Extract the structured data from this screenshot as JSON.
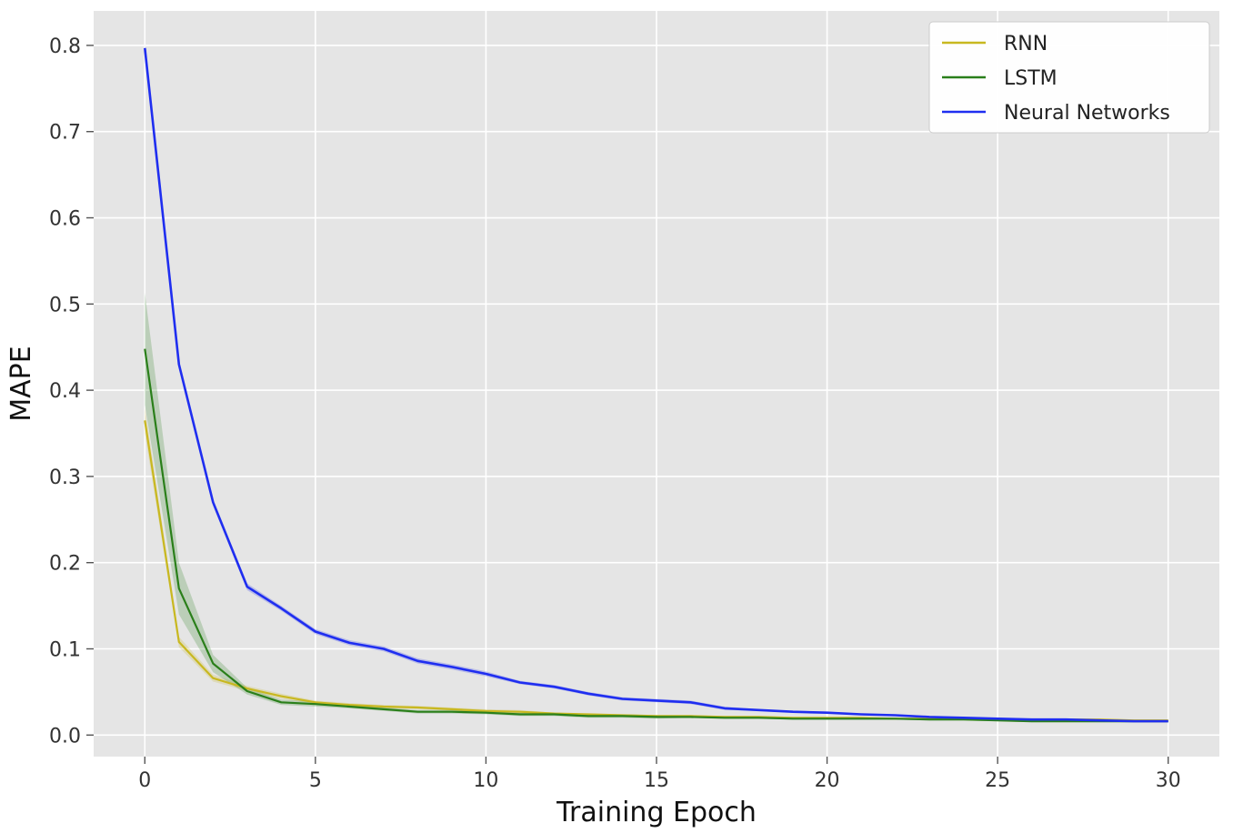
{
  "chart_data": {
    "type": "line",
    "xlabel": "Training Epoch",
    "ylabel": "MAPE",
    "xlim": [
      -1.5,
      31.5
    ],
    "ylim": [
      -0.025,
      0.84
    ],
    "xticks": [
      0,
      5,
      10,
      15,
      20,
      25,
      30
    ],
    "yticks": [
      0.0,
      0.1,
      0.2,
      0.3,
      0.4,
      0.5,
      0.6,
      0.7,
      0.8
    ],
    "ytick_labels": [
      "0.0",
      "0.1",
      "0.2",
      "0.3",
      "0.4",
      "0.5",
      "0.6",
      "0.7",
      "0.8"
    ],
    "grid": true,
    "legend_position": "top-right",
    "background": "#e5e5e5",
    "x": [
      0,
      1,
      2,
      3,
      4,
      5,
      6,
      7,
      8,
      9,
      10,
      11,
      12,
      13,
      14,
      15,
      16,
      17,
      18,
      19,
      20,
      21,
      22,
      23,
      24,
      25,
      26,
      27,
      28,
      29,
      30
    ],
    "series": [
      {
        "name": "RNN",
        "color": "#c8b820",
        "values": [
          0.365,
          0.108,
          0.066,
          0.054,
          0.045,
          0.038,
          0.035,
          0.033,
          0.032,
          0.03,
          0.028,
          0.027,
          0.025,
          0.024,
          0.023,
          0.022,
          0.022,
          0.021,
          0.021,
          0.02,
          0.02,
          0.02,
          0.019,
          0.019,
          0.019,
          0.018,
          0.018,
          0.018,
          0.018,
          0.017,
          0.017
        ],
        "band": [
          0.015,
          0.006,
          0.004,
          0.003,
          0.003,
          0.002,
          0.002,
          0.002,
          0.002,
          0.002,
          0.002,
          0.002,
          0.001,
          0.001,
          0.001,
          0.001,
          0.001,
          0.001,
          0.001,
          0.001,
          0.001,
          0.001,
          0.001,
          0.001,
          0.001,
          0.001,
          0.001,
          0.001,
          0.001,
          0.001,
          0.001
        ]
      },
      {
        "name": "LSTM",
        "color": "#2a7f1a",
        "values": [
          0.448,
          0.17,
          0.083,
          0.051,
          0.038,
          0.036,
          0.033,
          0.03,
          0.027,
          0.027,
          0.026,
          0.024,
          0.024,
          0.022,
          0.022,
          0.021,
          0.021,
          0.02,
          0.02,
          0.019,
          0.019,
          0.019,
          0.019,
          0.018,
          0.018,
          0.017,
          0.016,
          0.016,
          0.016,
          0.016,
          0.016
        ],
        "band": [
          0.065,
          0.03,
          0.01,
          0.004,
          0.003,
          0.003,
          0.002,
          0.002,
          0.002,
          0.002,
          0.002,
          0.002,
          0.002,
          0.002,
          0.002,
          0.002,
          0.001,
          0.001,
          0.001,
          0.001,
          0.001,
          0.001,
          0.001,
          0.001,
          0.001,
          0.001,
          0.001,
          0.001,
          0.001,
          0.001,
          0.001
        ]
      },
      {
        "name": "Neural Networks",
        "color": "#1f2ef0",
        "values": [
          0.797,
          0.43,
          0.27,
          0.172,
          0.147,
          0.12,
          0.107,
          0.1,
          0.086,
          0.079,
          0.071,
          0.061,
          0.056,
          0.048,
          0.042,
          0.04,
          0.038,
          0.031,
          0.029,
          0.027,
          0.026,
          0.024,
          0.023,
          0.021,
          0.02,
          0.019,
          0.018,
          0.018,
          0.017,
          0.016,
          0.016
        ],
        "band": [
          0.004,
          0.004,
          0.004,
          0.004,
          0.003,
          0.003,
          0.003,
          0.003,
          0.003,
          0.003,
          0.003,
          0.002,
          0.002,
          0.002,
          0.002,
          0.002,
          0.002,
          0.002,
          0.001,
          0.001,
          0.001,
          0.001,
          0.001,
          0.001,
          0.001,
          0.001,
          0.001,
          0.001,
          0.001,
          0.001,
          0.001
        ]
      }
    ]
  }
}
